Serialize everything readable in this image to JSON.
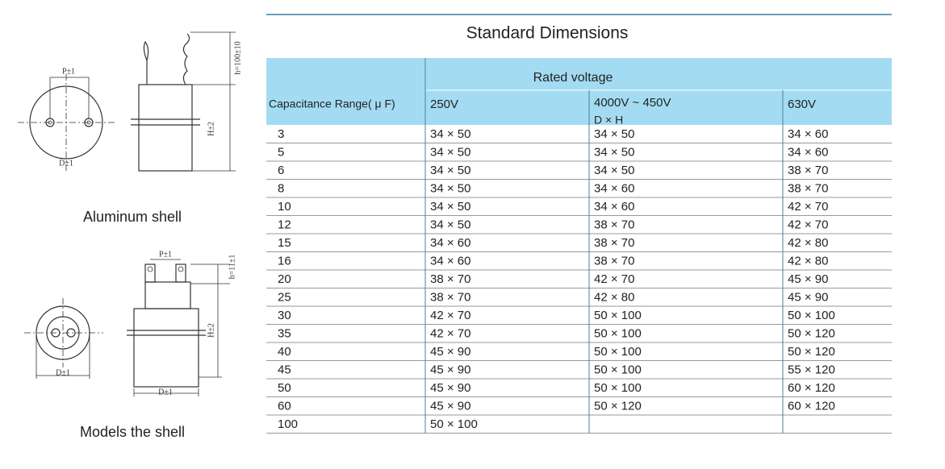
{
  "table": {
    "title": "Standard Dimensions",
    "group_header": "Rated voltage",
    "columns": [
      "Capacitance Range( μ F)",
      "250V",
      "4000V ~ 450V",
      "630V"
    ],
    "column_note": "D × H",
    "rows": [
      [
        "3",
        "34 × 50",
        "34 × 50",
        "34 × 60"
      ],
      [
        "5",
        "34 × 50",
        "34 × 50",
        "34 × 60"
      ],
      [
        "6",
        "34 × 50",
        "34 × 50",
        "38 × 70"
      ],
      [
        "8",
        "34 × 50",
        "34 × 60",
        "38 × 70"
      ],
      [
        "10",
        "34 × 50",
        "34 × 60",
        "42 × 70"
      ],
      [
        "12",
        "34 × 50",
        "38 × 70",
        "42 × 70"
      ],
      [
        "15",
        "34 × 60",
        "38 × 70",
        "42 × 80"
      ],
      [
        "16",
        "34 × 60",
        "38 × 70",
        "42 × 80"
      ],
      [
        "20",
        "38 × 70",
        "42 × 70",
        "45 × 90"
      ],
      [
        "25",
        "38 × 70",
        "42 × 80",
        "45 × 90"
      ],
      [
        "30",
        "42 × 70",
        "50 × 100",
        "50 × 100"
      ],
      [
        "35",
        "42 × 70",
        "50 × 100",
        "50 × 120"
      ],
      [
        "40",
        "45 × 90",
        "50 × 100",
        "50 × 120"
      ],
      [
        "45",
        "45 × 90",
        "50 × 100",
        "55 × 120"
      ],
      [
        "50",
        "45 × 90",
        "50 × 100",
        "60 × 120"
      ],
      [
        "60",
        "45 × 90",
        "50 × 120",
        "60 × 120"
      ],
      [
        "100",
        "50 × 100"
      ]
    ]
  },
  "diagrams": [
    {
      "caption": "Aluminum shell",
      "labels": [
        "P±1",
        "D±1",
        "H±2",
        "h=100±10"
      ]
    },
    {
      "caption": "Models the shell",
      "labels": [
        "P±1",
        "D±1",
        "D±1",
        "H±2",
        "h=11±1"
      ]
    }
  ]
}
